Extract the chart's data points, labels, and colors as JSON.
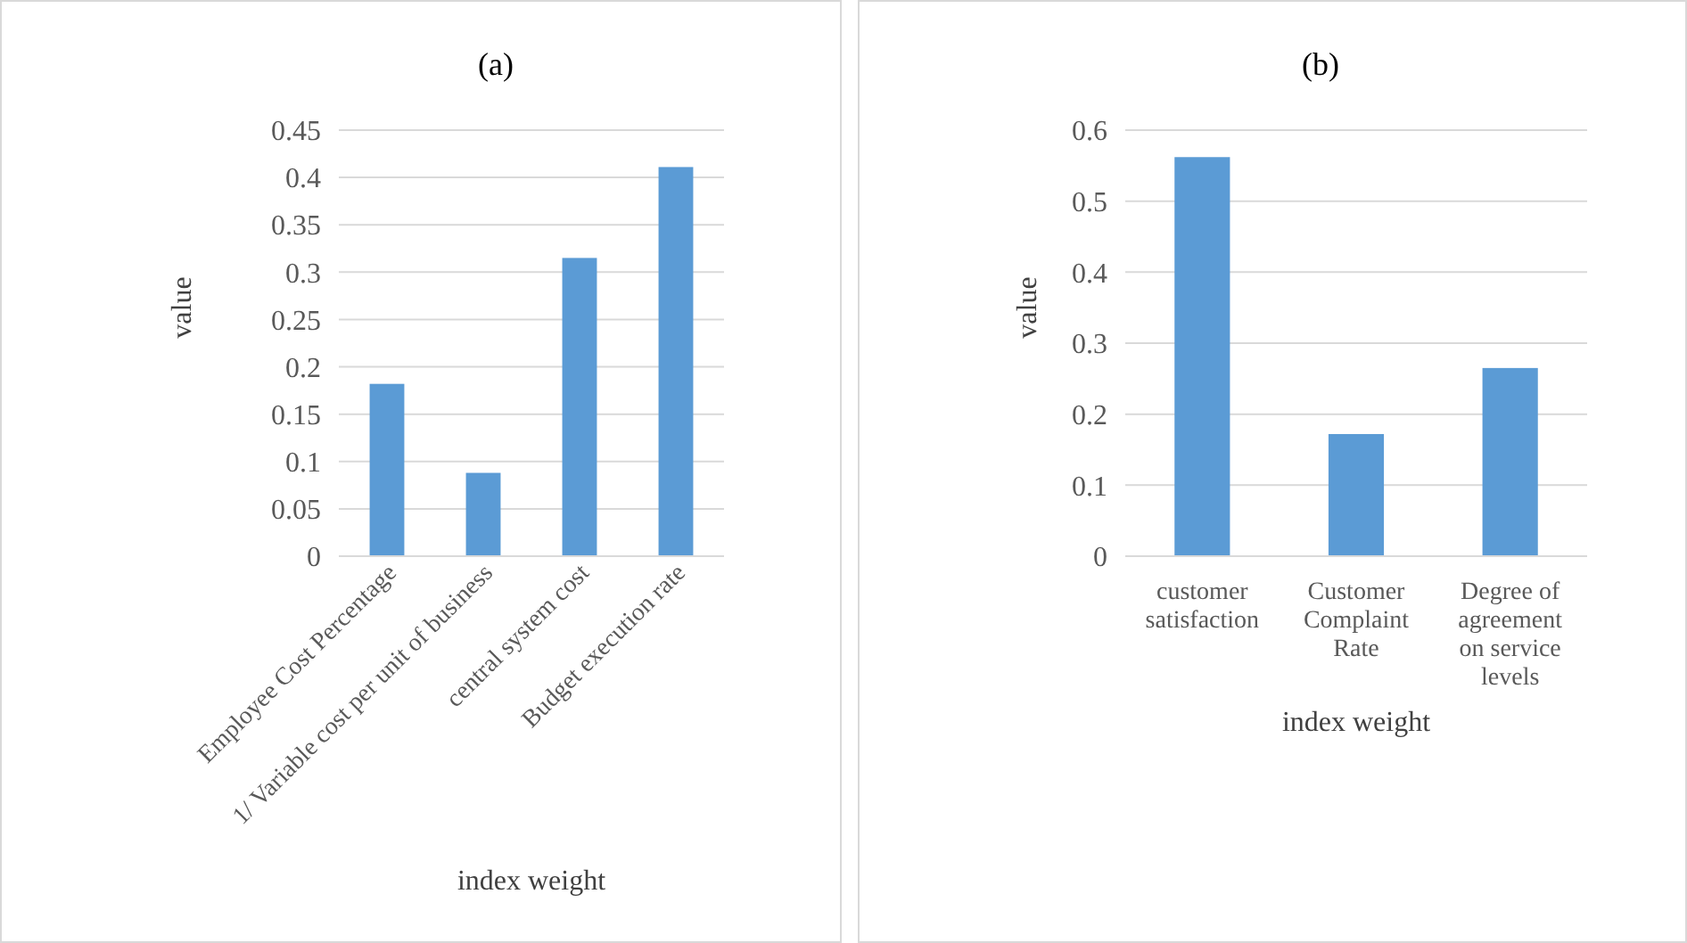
{
  "chart_data": [
    {
      "type": "bar",
      "title": "(a)",
      "xlabel": "index weight",
      "ylabel": "value",
      "categories": [
        "Employee Cost Percentage",
        "1/ Variable cost per unit of business",
        "central system cost",
        "Budget execution rate"
      ],
      "values": [
        0.182,
        0.088,
        0.315,
        0.411
      ],
      "color": "#5b9bd5",
      "ylim": [
        0,
        0.45
      ],
      "yticks": [
        0,
        0.05,
        0.1,
        0.15,
        0.2,
        0.25,
        0.3,
        0.35,
        0.4,
        0.45
      ],
      "grid": "y"
    },
    {
      "type": "bar",
      "title": "(b)",
      "xlabel": "index weight",
      "ylabel": "value",
      "categories": [
        "customer satisfaction",
        "Customer Complaint Rate",
        "Degree of agreement on service levels"
      ],
      "values": [
        0.562,
        0.172,
        0.265
      ],
      "color": "#5b9bd5",
      "ylim": [
        0,
        0.6
      ],
      "yticks": [
        0,
        0.1,
        0.2,
        0.3,
        0.4,
        0.5,
        0.6
      ],
      "grid": "y"
    }
  ]
}
